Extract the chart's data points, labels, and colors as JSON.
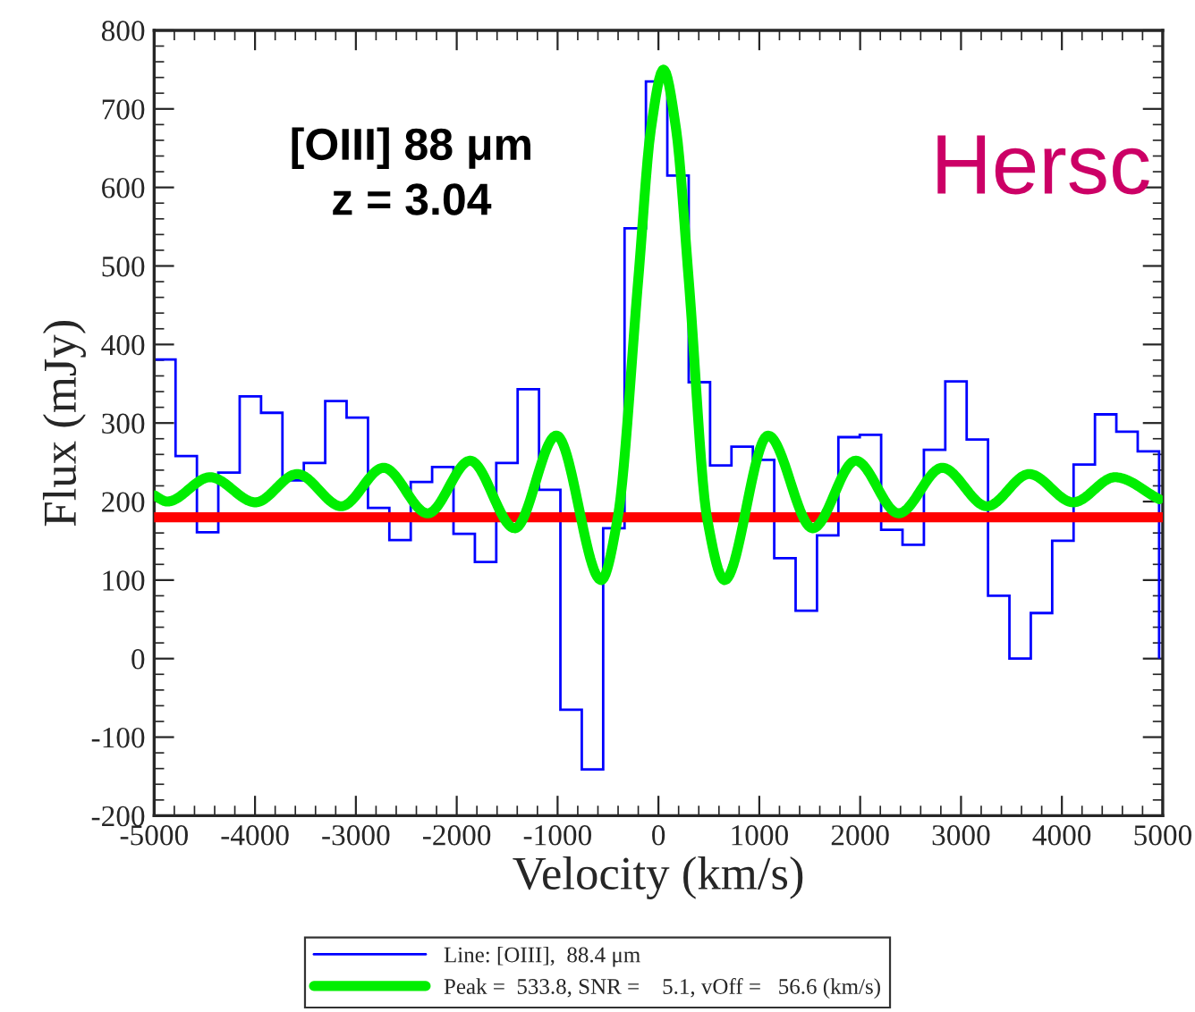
{
  "chart_data": {
    "type": "histogram",
    "xlabel": "Velocity (km/s)",
    "ylabel": "Flux (mJy)",
    "xlim": [
      -5000,
      5000
    ],
    "ylim": [
      -200,
      800
    ],
    "xticks": [
      -5000,
      -4000,
      -3000,
      -2000,
      -1000,
      0,
      1000,
      2000,
      3000,
      4000,
      5000
    ],
    "yticks": [
      -200,
      -100,
      0,
      100,
      200,
      300,
      400,
      500,
      600,
      700,
      800
    ],
    "grid": false,
    "legend": "bottom",
    "annotations": [
      "[OIII] 88 μm",
      "z = 3.04",
      "Hersc"
    ],
    "bins": [
      -5000,
      -4788,
      -4576,
      -4364,
      -4152,
      -3940,
      -3728,
      -3516,
      -3304,
      -3092,
      -2880,
      -2668,
      -2456,
      -2244,
      -2032,
      -1820,
      -1608,
      -1396,
      -1184,
      -972,
      -760,
      -548,
      -336,
      -124,
      88,
      300,
      512,
      724,
      936,
      1148,
      1360,
      1572,
      1784,
      1996,
      2208,
      2420,
      2632,
      2844,
      3056,
      3268,
      3480,
      3692,
      3904,
      4116,
      4328,
      4540,
      4752,
      4964
    ],
    "series": [
      {
        "name": "Line: [OIII],  88.4 μm",
        "color": "#0000ff",
        "values": [
          381,
          258,
          161,
          237,
          334,
          313,
          227,
          249,
          328,
          307,
          192,
          151,
          225,
          244,
          159,
          123,
          249,
          343,
          215,
          -65,
          -141,
          166,
          548,
          735,
          615,
          352,
          246,
          270,
          253,
          128,
          61,
          157,
          282,
          285,
          164,
          145,
          266,
          353,
          279,
          80,
          0,
          58,
          150,
          247,
          311,
          289,
          264
        ]
      },
      {
        "name": "Peak =  533.8, SNR =    5.1, vOff =   56.6 (km/s)",
        "type": "line",
        "color": "#00ee00",
        "x": [
          -5000,
          -4870,
          -4445,
          -3995,
          -3582,
          -3144,
          -2725,
          -2287,
          -1867,
          -1424,
          -1011,
          -567,
          -403,
          -200,
          -75,
          50,
          175,
          300,
          481,
          656,
          1087,
          1530,
          1956,
          2381,
          2814,
          3257,
          3676,
          4113,
          4527,
          4965
        ],
        "values": [
          208,
          200,
          231,
          199,
          235,
          194,
          243,
          185,
          252,
          166,
          284,
          100,
          180,
          483,
          674,
          750,
          674,
          483,
          180,
          100,
          284,
          166,
          252,
          185,
          243,
          194,
          235,
          199,
          231,
          203
        ]
      }
    ],
    "ref_lines": [
      {
        "axis": "y",
        "value": 180,
        "color": "#ff0000"
      }
    ]
  }
}
